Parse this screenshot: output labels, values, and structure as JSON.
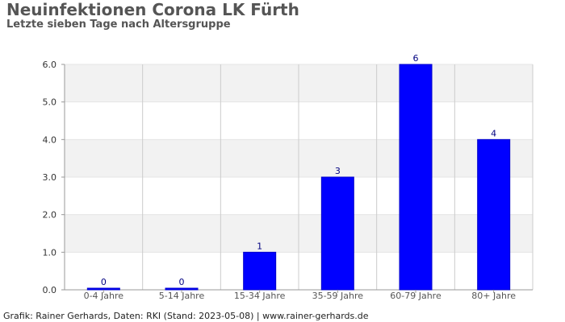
{
  "title": "Neuinfektionen Corona LK Fürth",
  "subtitle": "Letzte sieben Tage nach Altersgruppe",
  "footer": "Grafik: Rainer Gerhards, Daten: RKI (Stand: 2023-05-08) | www.rainer-gerhards.de",
  "colors": {
    "bar": "#0000ff",
    "data_label": "#000080",
    "band": "#f2f2f2",
    "grid": "#cccccc",
    "axis": "#999999"
  },
  "chart_data": {
    "type": "bar",
    "categories": [
      "0-4 Jahre",
      "5-14 Jahre",
      "15-34 Jahre",
      "35-59 Jahre",
      "60-79 Jahre",
      "80+ Jahre"
    ],
    "values": [
      0,
      0,
      1,
      3,
      6,
      4
    ],
    "data_labels": [
      "0",
      "0",
      "1",
      "3",
      "6",
      "4"
    ],
    "y_ticks": [
      "0.0",
      "1.0",
      "2.0",
      "3.0",
      "4.0",
      "5.0",
      "6.0"
    ],
    "ylim": [
      0,
      6
    ],
    "grid": true,
    "legend": "none"
  }
}
